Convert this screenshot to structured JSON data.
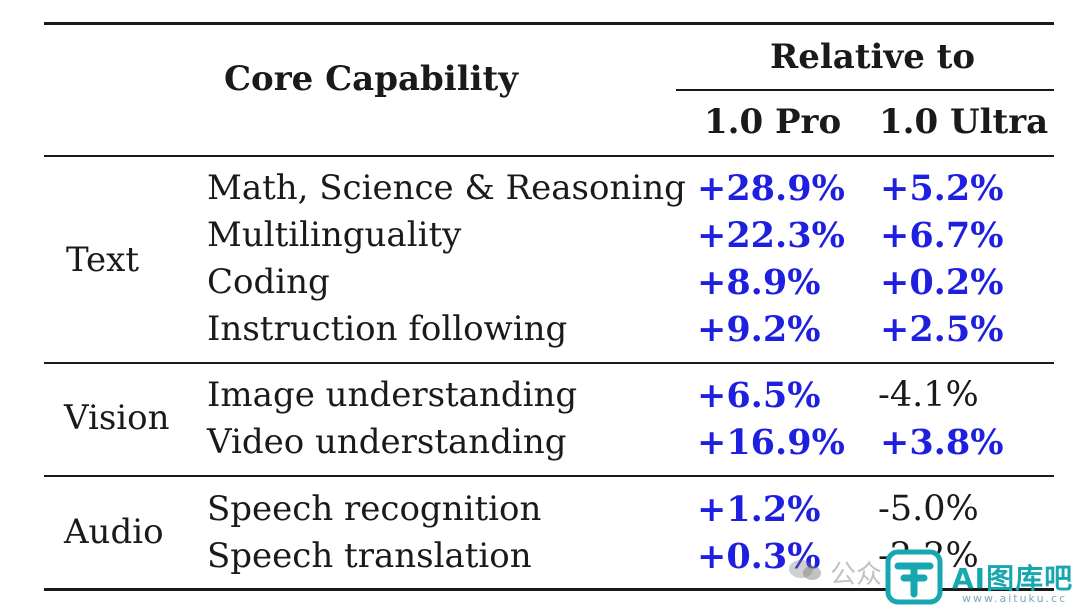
{
  "header": {
    "core_capability": "Core Capability",
    "relative_to": "Relative to",
    "col_pro": "1.0 Pro",
    "col_ultra": "1.0 Ultra"
  },
  "groups": [
    {
      "name": "Text",
      "rows": [
        {
          "capability": "Math, Science & Reasoning",
          "pro": "+28.9%",
          "ultra": "+5.2%"
        },
        {
          "capability": "Multilinguality",
          "pro": "+22.3%",
          "ultra": "+6.7%"
        },
        {
          "capability": "Coding",
          "pro": "+8.9%",
          "ultra": "+0.2%"
        },
        {
          "capability": "Instruction following",
          "pro": "+9.2%",
          "ultra": "+2.5%"
        }
      ]
    },
    {
      "name": "Vision",
      "rows": [
        {
          "capability": "Image understanding",
          "pro": "+6.5%",
          "ultra": "-4.1%"
        },
        {
          "capability": "Video understanding",
          "pro": "+16.9%",
          "ultra": "+3.8%"
        }
      ]
    },
    {
      "name": "Audio",
      "rows": [
        {
          "capability": "Speech recognition",
          "pro": "+1.2%",
          "ultra": "-5.0%"
        },
        {
          "capability": "Speech translation",
          "pro": "+0.3%",
          "ultra": "-2.2%"
        }
      ]
    }
  ],
  "colors": {
    "positive": "#1f1fe0",
    "negative": "#1a1a1a",
    "brand": "#17a7b0"
  },
  "watermark": {
    "left_text": "公众",
    "brand": "AI图库吧",
    "url": "www.aituku.cc",
    "logo_icon": "aituku-logo-icon",
    "bubble_icon": "chat-bubble-icon"
  }
}
